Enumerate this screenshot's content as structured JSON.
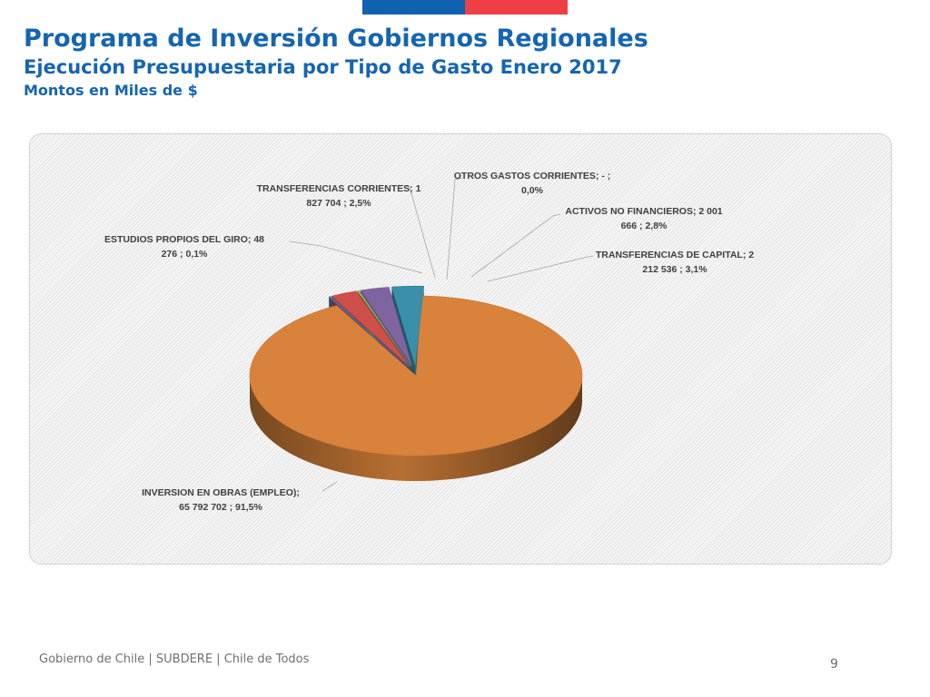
{
  "header": {
    "title": "Programa de Inversión Gobiernos Regionales",
    "subtitle": "Ejecución Presupuestaria por Tipo de Gasto Enero 2017",
    "units": "Montos en Miles de $"
  },
  "chart_data": {
    "type": "pie",
    "title": "",
    "slices": [
      {
        "category": "INVERSION EN OBRAS (EMPLEO)",
        "value": 65792702,
        "percent": 91.5,
        "label_lines": [
          "INVERSION EN OBRAS (EMPLEO);",
          "65 792 702 ; 91,5%"
        ],
        "color": "#d9823b"
      },
      {
        "category": "ESTUDIOS PROPIOS DEL GIRO",
        "value": 48276,
        "percent": 0.1,
        "label_lines": [
          "ESTUDIOS PROPIOS DEL GIRO;  48",
          "276 ; 0,1%"
        ],
        "color": "#4a7fc1"
      },
      {
        "category": "TRANSFERENCIAS CORRIENTES",
        "value": 1827704,
        "percent": 2.5,
        "label_lines": [
          "TRANSFERENCIAS CORRIENTES;  1",
          "827 704 ; 2,5%"
        ],
        "color": "#cf4f4a"
      },
      {
        "category": "OTROS GASTOS CORRIENTES",
        "value": 0,
        "percent": 0.0,
        "label_lines": [
          "OTROS GASTOS CORRIENTES;  -   ;",
          "0,0%"
        ],
        "color": "#98b954"
      },
      {
        "category": "ACTIVOS NO FINANCIEROS",
        "value": 2001666,
        "percent": 2.8,
        "label_lines": [
          "ACTIVOS NO FINANCIEROS;  2 001",
          "666 ; 2,8%"
        ],
        "color": "#8064a2"
      },
      {
        "category": "TRANSFERENCIAS DE CAPITAL",
        "value": 2212536,
        "percent": 3.1,
        "label_lines": [
          "TRANSFERENCIAS DE CAPITAL;  2",
          "212 536 ; 3,1%"
        ],
        "color": "#3b8fa8"
      }
    ],
    "style": "3d-exploded",
    "legend": "none"
  },
  "footer": {
    "text": "Gobierno de Chile | SUBDERE | Chile de Todos",
    "page_number": "9"
  }
}
